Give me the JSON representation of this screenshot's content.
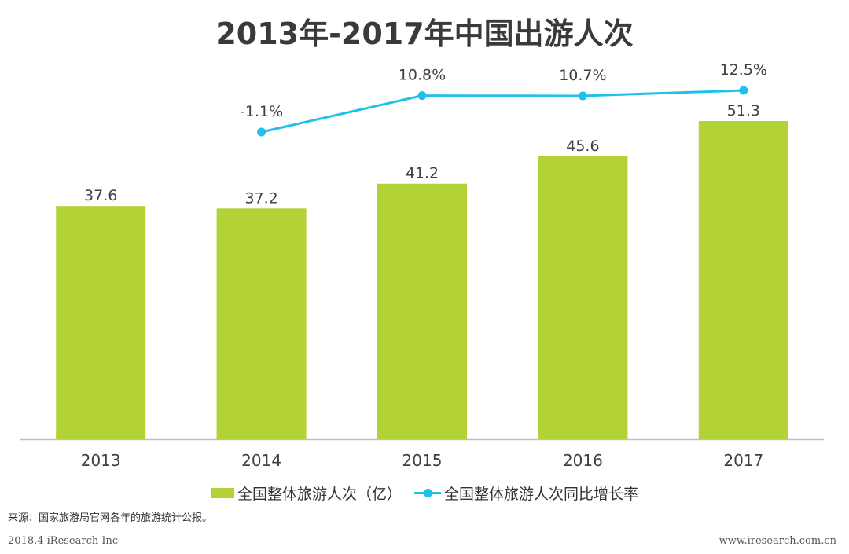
{
  "chart_data": {
    "type": "bar",
    "title": "2013年-2017年中国出游人次",
    "categories": [
      "2013",
      "2014",
      "2015",
      "2016",
      "2017"
    ],
    "series": [
      {
        "name": "全国整体旅游人次（亿）",
        "type": "bar",
        "values": [
          37.6,
          37.2,
          41.2,
          45.6,
          51.3
        ],
        "labels": [
          "37.6",
          "37.2",
          "41.2",
          "45.6",
          "51.3"
        ],
        "color": "#b2d235"
      },
      {
        "name": "全国整体旅游人次同比增长率",
        "type": "line",
        "x": [
          "2014",
          "2015",
          "2016",
          "2017"
        ],
        "values": [
          -1.1,
          10.8,
          10.7,
          12.5
        ],
        "labels": [
          "-1.1%",
          "10.8%",
          "10.7%",
          "12.5%"
        ],
        "color": "#1fc0ea"
      }
    ],
    "xlabel": "",
    "ylabel": "",
    "ylim": [
      0,
      51.3
    ],
    "legend": "bottom",
    "grid": false
  },
  "source": "来源：国家旅游局官网各年的旅游统计公报。",
  "footer": {
    "left": "2018.4 iResearch Inc",
    "right": "www.iresearch.com.cn"
  }
}
